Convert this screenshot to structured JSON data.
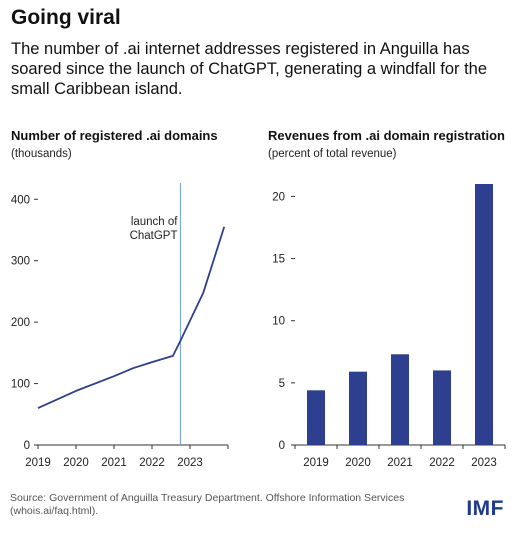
{
  "header": {
    "title": "Going viral",
    "subtitle": "The number of .ai internet addresses registered in Anguilla has soared since the launch of ChatGPT, generating a windfall for the small Caribbean island."
  },
  "footer": {
    "source": "Source: Government of Anguilla Treasury Department. Offshore Information Services (whois.ai/faq.html).",
    "logo": "IMF"
  },
  "colors": {
    "line": "#2e3f8f",
    "bar": "#2e3f8f",
    "marker": "#7fa8dc",
    "axis": "#333333"
  },
  "chart_data": [
    {
      "type": "line",
      "title": "Number of registered .ai domains",
      "subtitle": "(thousands)",
      "x": [
        2019.0,
        2020.0,
        2021.0,
        2021.5,
        2022.0,
        2022.55,
        2022.75,
        2023.35,
        2023.9
      ],
      "y": [
        60,
        88,
        112,
        125,
        135,
        145,
        170,
        248,
        355
      ],
      "xticks": [
        "2019",
        "2020",
        "2021",
        "2022",
        "2023"
      ],
      "xlim": [
        2019,
        2024
      ],
      "ylim": [
        0,
        420
      ],
      "yticks": [
        0,
        100,
        200,
        300,
        400
      ],
      "annotation": {
        "text": [
          "launch of",
          "ChatGPT"
        ],
        "x": 2022.75
      },
      "grid": false
    },
    {
      "type": "bar",
      "title": "Revenues from .ai domain registration",
      "subtitle": "(percent of total revenue)",
      "categories": [
        "2019",
        "2020",
        "2021",
        "2022",
        "2023"
      ],
      "values": [
        4.4,
        5.9,
        7.3,
        6.0,
        21.0
      ],
      "ylim": [
        0,
        21
      ],
      "yticks": [
        0,
        5,
        10,
        15,
        20
      ],
      "grid": false
    }
  ]
}
